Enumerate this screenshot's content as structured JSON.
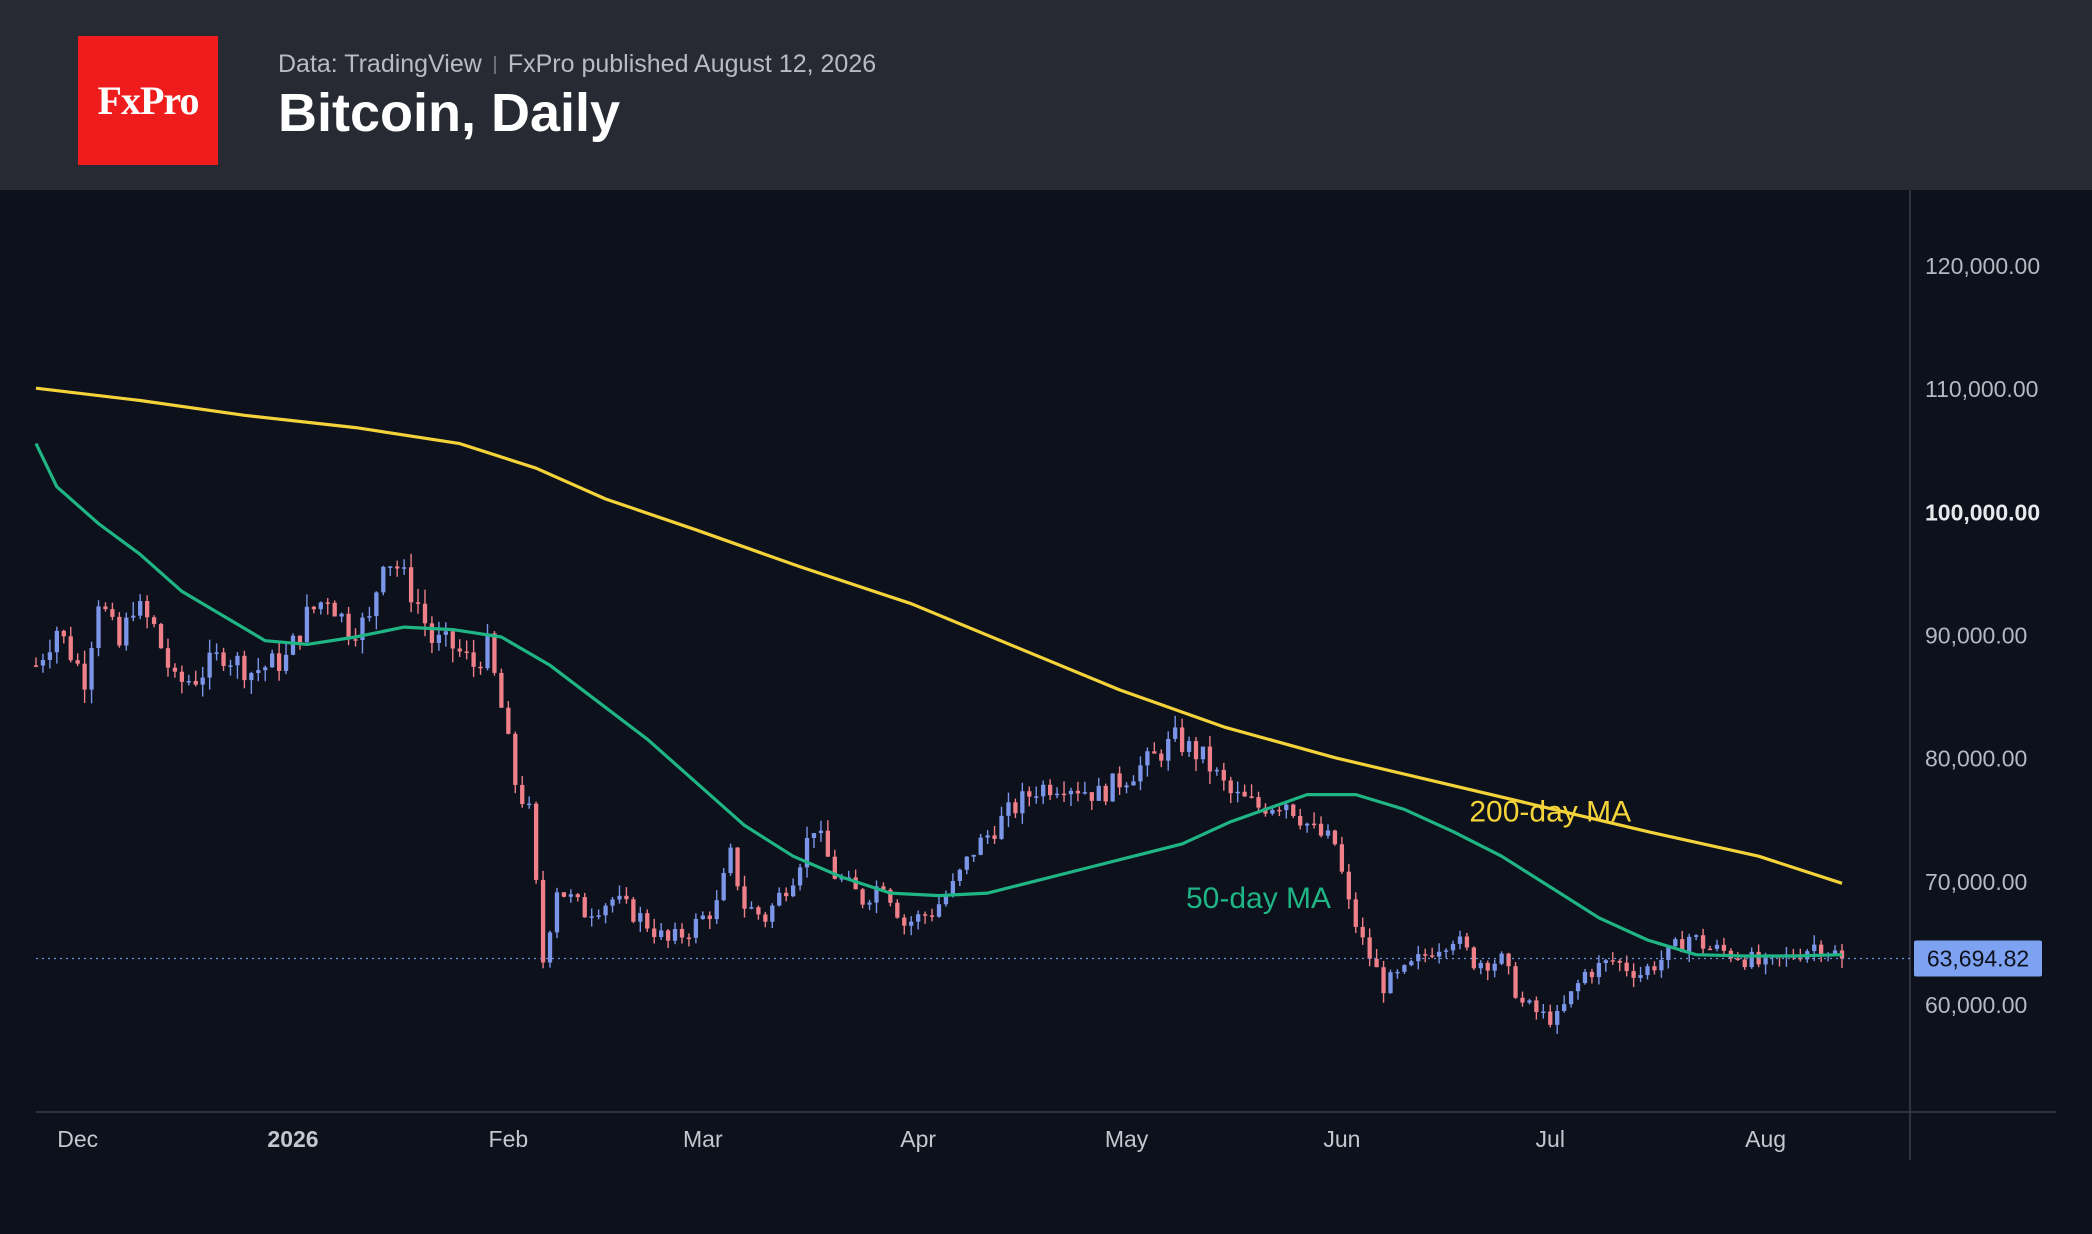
{
  "header": {
    "logo_text": "FxPro",
    "source": "Data: TradingView",
    "published": "FxPro published August 12, 2026",
    "title": "Bitcoin, Daily"
  },
  "colors": {
    "background": "#0c111c",
    "header_bg": "#272a33",
    "logo_bg": "#ee1c1c",
    "candle_up": "#7b95e8",
    "candle_down": "#ef7f88",
    "ma50": "#1fb584",
    "ma200": "#f4d33a",
    "last_price_bg": "#7ea2f2"
  },
  "chart_data": {
    "type": "candlestick",
    "title": "Bitcoin, Daily",
    "x_start": "2025-11-25",
    "x_end": "2026-08-12",
    "ylim": [
      45000,
      125000
    ],
    "y_ticks": [
      {
        "value": 120000,
        "label": "120,000.00",
        "bold": false
      },
      {
        "value": 110000,
        "label": "110,000.00",
        "bold": false
      },
      {
        "value": 100000,
        "label": "100,000.00",
        "bold": true
      },
      {
        "value": 90000,
        "label": "90,000.00",
        "bold": false
      },
      {
        "value": 80000,
        "label": "80,000.00",
        "bold": false
      },
      {
        "value": 70000,
        "label": "70,000.00",
        "bold": false
      },
      {
        "value": 60000,
        "label": "60,000.00",
        "bold": false
      }
    ],
    "x_ticks": [
      {
        "date": "2025-12-01",
        "label": "Dec",
        "bold": false
      },
      {
        "date": "2026-01-01",
        "label": "2026",
        "bold": true
      },
      {
        "date": "2026-02-01",
        "label": "Feb",
        "bold": false
      },
      {
        "date": "2026-03-01",
        "label": "Mar",
        "bold": false
      },
      {
        "date": "2026-04-01",
        "label": "Apr",
        "bold": false
      },
      {
        "date": "2026-05-01",
        "label": "May",
        "bold": false
      },
      {
        "date": "2026-06-01",
        "label": "Jun",
        "bold": false
      },
      {
        "date": "2026-07-01",
        "label": "Jul",
        "bold": false
      },
      {
        "date": "2026-08-01",
        "label": "Aug",
        "bold": false
      }
    ],
    "price_path": [
      [
        "2025-11-25",
        87500
      ],
      [
        "2025-11-28",
        90500
      ],
      [
        "2025-12-02",
        86500
      ],
      [
        "2025-12-04",
        93000
      ],
      [
        "2025-12-07",
        89000
      ],
      [
        "2025-12-09",
        92500
      ],
      [
        "2025-12-12",
        90500
      ],
      [
        "2025-12-15",
        86000
      ],
      [
        "2025-12-18",
        86500
      ],
      [
        "2025-12-22",
        88500
      ],
      [
        "2025-12-26",
        87000
      ],
      [
        "2025-12-31",
        88000
      ],
      [
        "2026-01-03",
        91500
      ],
      [
        "2026-01-06",
        93200
      ],
      [
        "2026-01-09",
        90500
      ],
      [
        "2026-01-12",
        91000
      ],
      [
        "2026-01-14",
        96500
      ],
      [
        "2026-01-16",
        95500
      ],
      [
        "2026-01-19",
        92500
      ],
      [
        "2026-01-21",
        89500
      ],
      [
        "2026-01-24",
        89000
      ],
      [
        "2026-01-27",
        87500
      ],
      [
        "2026-01-29",
        89000
      ],
      [
        "2026-01-31",
        84000
      ],
      [
        "2026-02-02",
        78000
      ],
      [
        "2026-02-04",
        75500
      ],
      [
        "2026-02-06",
        63500
      ],
      [
        "2026-02-08",
        69500
      ],
      [
        "2026-02-12",
        67500
      ],
      [
        "2026-02-16",
        68500
      ],
      [
        "2026-02-20",
        67000
      ],
      [
        "2026-02-24",
        65000
      ],
      [
        "2026-02-27",
        66000
      ],
      [
        "2026-03-03",
        68000
      ],
      [
        "2026-03-05",
        72000
      ],
      [
        "2026-03-07",
        68000
      ],
      [
        "2026-03-10",
        67000
      ],
      [
        "2026-03-14",
        70500
      ],
      [
        "2026-03-17",
        74500
      ],
      [
        "2026-03-20",
        70500
      ],
      [
        "2026-03-24",
        68500
      ],
      [
        "2026-03-27",
        70000
      ],
      [
        "2026-03-30",
        66500
      ],
      [
        "2026-04-03",
        67500
      ],
      [
        "2026-04-06",
        69500
      ],
      [
        "2026-04-09",
        72500
      ],
      [
        "2026-04-14",
        75500
      ],
      [
        "2026-04-18",
        77500
      ],
      [
        "2026-04-22",
        78000
      ],
      [
        "2026-04-27",
        77000
      ],
      [
        "2026-05-01",
        78500
      ],
      [
        "2026-05-05",
        80000
      ],
      [
        "2026-05-08",
        81500
      ],
      [
        "2026-05-12",
        80000
      ],
      [
        "2026-05-16",
        77000
      ],
      [
        "2026-05-20",
        76000
      ],
      [
        "2026-05-24",
        76500
      ],
      [
        "2026-05-28",
        74000
      ],
      [
        "2026-05-31",
        73000
      ],
      [
        "2026-06-02",
        68000
      ],
      [
        "2026-06-04",
        65000
      ],
      [
        "2026-06-07",
        61500
      ],
      [
        "2026-06-10",
        62500
      ],
      [
        "2026-06-14",
        64500
      ],
      [
        "2026-06-17",
        65500
      ],
      [
        "2026-06-20",
        63500
      ],
      [
        "2026-06-24",
        63500
      ],
      [
        "2026-06-27",
        60000
      ],
      [
        "2026-06-30",
        59000
      ],
      [
        "2026-07-02",
        58800
      ],
      [
        "2026-07-06",
        62500
      ],
      [
        "2026-07-10",
        63500
      ],
      [
        "2026-07-14",
        62500
      ],
      [
        "2026-07-18",
        64000
      ],
      [
        "2026-07-21",
        65500
      ],
      [
        "2026-07-24",
        64500
      ],
      [
        "2026-07-28",
        64000
      ],
      [
        "2026-08-01",
        63000
      ],
      [
        "2026-08-05",
        64000
      ],
      [
        "2026-08-08",
        64800
      ],
      [
        "2026-08-10",
        64500
      ],
      [
        "2026-08-12",
        63694.82
      ]
    ],
    "series": [
      {
        "name": "50-day MA",
        "color": "#1fb584",
        "label_anchor": [
          "2026-05-20",
          67800
        ],
        "points": [
          [
            "2025-11-25",
            105500
          ],
          [
            "2025-11-28",
            102000
          ],
          [
            "2025-12-04",
            99000
          ],
          [
            "2025-12-10",
            96500
          ],
          [
            "2025-12-16",
            93500
          ],
          [
            "2025-12-22",
            91500
          ],
          [
            "2025-12-28",
            89500
          ],
          [
            "2026-01-03",
            89200
          ],
          [
            "2026-01-10",
            89800
          ],
          [
            "2026-01-17",
            90600
          ],
          [
            "2026-01-24",
            90400
          ],
          [
            "2026-01-31",
            89800
          ],
          [
            "2026-02-07",
            87500
          ],
          [
            "2026-02-14",
            84500
          ],
          [
            "2026-02-21",
            81500
          ],
          [
            "2026-02-28",
            78000
          ],
          [
            "2026-03-07",
            74500
          ],
          [
            "2026-03-14",
            72000
          ],
          [
            "2026-03-21",
            70300
          ],
          [
            "2026-03-28",
            69000
          ],
          [
            "2026-04-04",
            68800
          ],
          [
            "2026-04-11",
            69000
          ],
          [
            "2026-04-18",
            70000
          ],
          [
            "2026-04-25",
            71000
          ],
          [
            "2026-05-02",
            72000
          ],
          [
            "2026-05-09",
            73000
          ],
          [
            "2026-05-16",
            74800
          ],
          [
            "2026-05-23",
            76200
          ],
          [
            "2026-05-27",
            77000
          ],
          [
            "2026-06-03",
            77000
          ],
          [
            "2026-06-10",
            75800
          ],
          [
            "2026-06-17",
            74000
          ],
          [
            "2026-06-24",
            72000
          ],
          [
            "2026-07-01",
            69500
          ],
          [
            "2026-07-08",
            67000
          ],
          [
            "2026-07-15",
            65200
          ],
          [
            "2026-07-22",
            64000
          ],
          [
            "2026-07-29",
            63900
          ],
          [
            "2026-08-05",
            63900
          ],
          [
            "2026-08-12",
            64000
          ]
        ]
      },
      {
        "name": "200-day MA",
        "color": "#f4d33a",
        "label_anchor": [
          "2026-07-01",
          74800
        ],
        "points": [
          [
            "2025-11-25",
            110000
          ],
          [
            "2025-12-10",
            109000
          ],
          [
            "2025-12-25",
            107800
          ],
          [
            "2026-01-10",
            106800
          ],
          [
            "2026-01-25",
            105500
          ],
          [
            "2026-02-05",
            103500
          ],
          [
            "2026-02-15",
            101000
          ],
          [
            "2026-02-28",
            98500
          ],
          [
            "2026-03-15",
            95500
          ],
          [
            "2026-03-31",
            92500
          ],
          [
            "2026-04-15",
            89000
          ],
          [
            "2026-04-30",
            85500
          ],
          [
            "2026-05-15",
            82500
          ],
          [
            "2026-05-31",
            80000
          ],
          [
            "2026-06-15",
            78000
          ],
          [
            "2026-06-30",
            76000
          ],
          [
            "2026-07-15",
            74000
          ],
          [
            "2026-07-31",
            72000
          ],
          [
            "2026-08-12",
            69800
          ]
        ]
      }
    ],
    "last_price": {
      "value": 63694.82,
      "label": "63,694.82"
    }
  }
}
